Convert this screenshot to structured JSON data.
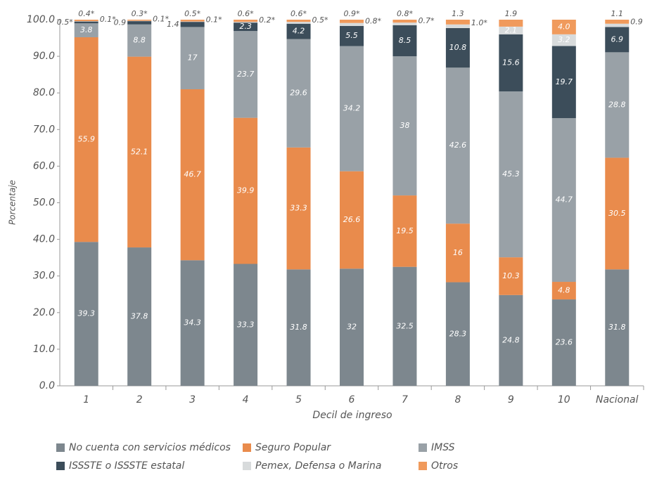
{
  "chart_data": {
    "type": "stacked_bar",
    "categories": [
      "1",
      "2",
      "3",
      "4",
      "5",
      "6",
      "7",
      "8",
      "9",
      "10",
      "Nacional"
    ],
    "x_label": "Decil de ingreso",
    "y_label": "Porcentaje",
    "ylim": [
      0,
      100
    ],
    "yticks": [
      {
        "value": 0,
        "label": "0.0"
      },
      {
        "value": 10,
        "label": "10.0"
      },
      {
        "value": 20,
        "label": "20.0"
      },
      {
        "value": 30,
        "label": "30.0"
      },
      {
        "value": 40,
        "label": "40.0"
      },
      {
        "value": 50,
        "label": "50.0"
      },
      {
        "value": 60,
        "label": "60.0"
      },
      {
        "value": 70,
        "label": "70.0"
      },
      {
        "value": 80,
        "label": "80.0"
      },
      {
        "value": 90,
        "label": "90.0"
      },
      {
        "value": 100,
        "label": "100.0"
      }
    ],
    "series": [
      {
        "name": "No cuenta con servicios médicos",
        "color": "#7d878e",
        "values": [
          39.3,
          37.8,
          34.3,
          33.3,
          31.8,
          32.0,
          32.5,
          28.3,
          24.8,
          23.6,
          31.8
        ]
      },
      {
        "name": "Seguro Popular",
        "color": "#e98b4c",
        "values": [
          55.9,
          52.1,
          46.7,
          39.9,
          33.3,
          26.6,
          19.5,
          16.0,
          10.3,
          4.8,
          30.5
        ]
      },
      {
        "name": "IMSS",
        "color": "#99a1a7",
        "values": [
          3.8,
          8.8,
          17.0,
          23.7,
          29.6,
          34.2,
          38.0,
          42.6,
          45.3,
          44.7,
          28.8
        ]
      },
      {
        "name": "ISSSTE o ISSSTE estatal",
        "color": "#3c4d5a",
        "values": [
          0.5,
          0.9,
          1.4,
          2.3,
          4.2,
          5.5,
          8.5,
          10.8,
          15.6,
          19.7,
          6.9
        ],
        "value_labels": [
          "0.5*",
          "0.9",
          "1.4",
          "2.3",
          "4.2",
          "5.5",
          "8.5",
          "10.8",
          "15.6",
          "19.7",
          "6.9"
        ]
      },
      {
        "name": "Pemex, Defensa o Marina",
        "color": "#d8dbdc",
        "values": [
          0.1,
          0.1,
          0.1,
          0.2,
          0.5,
          0.8,
          0.7,
          1.0,
          2.1,
          3.2,
          0.9
        ],
        "value_labels": [
          "0.1*",
          "0.1*",
          "0.1*",
          "0.2*",
          "0.5*",
          "0.8*",
          "0.7*",
          "1.0*",
          "2.1",
          "3.2",
          "0.9"
        ]
      },
      {
        "name": "Otros",
        "color": "#f09a5c",
        "values": [
          0.4,
          0.3,
          0.5,
          0.6,
          0.6,
          0.9,
          0.8,
          1.3,
          1.9,
          4.0,
          1.1
        ],
        "value_labels": [
          "0.4*",
          "0.3*",
          "0.5*",
          "0.6*",
          "0.6*",
          "0.9*",
          "0.8*",
          "1.3",
          "1.9",
          "4.0",
          "1.1"
        ]
      }
    ]
  }
}
